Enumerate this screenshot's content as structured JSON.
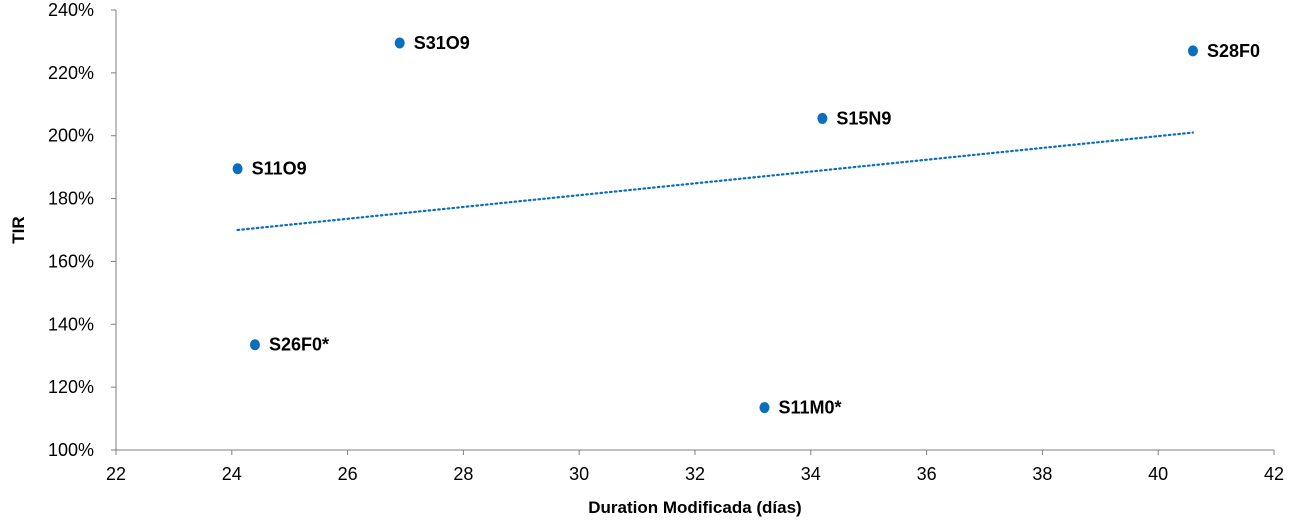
{
  "chart_data": {
    "type": "scatter",
    "title": "",
    "xlabel": "Duration Modificada (días)",
    "ylabel": "TIR",
    "xlim": [
      22,
      42
    ],
    "ylim": [
      100,
      240
    ],
    "x_ticks": [
      22,
      24,
      26,
      28,
      30,
      32,
      34,
      36,
      38,
      40,
      42
    ],
    "y_ticks": [
      100,
      120,
      140,
      160,
      180,
      200,
      220,
      240
    ],
    "y_tick_labels": [
      "100%",
      "120%",
      "140%",
      "160%",
      "180%",
      "200%",
      "220%",
      "240%"
    ],
    "grid": false,
    "legend": "none",
    "point_color": "#0b6fbd",
    "trendline": {
      "style": "dotted",
      "color": "#0b6fbd",
      "points": [
        [
          24.1,
          170
        ],
        [
          40.6,
          201
        ]
      ]
    },
    "points": [
      {
        "label": "S31O9",
        "x": 26.9,
        "y": 229.5
      },
      {
        "label": "S28F0",
        "x": 40.6,
        "y": 227
      },
      {
        "label": "S15N9",
        "x": 34.2,
        "y": 205.5
      },
      {
        "label": "S11O9",
        "x": 24.1,
        "y": 189.5
      },
      {
        "label": "S26F0*",
        "x": 24.4,
        "y": 133.5
      },
      {
        "label": "S11M0*",
        "x": 33.2,
        "y": 113.5
      }
    ]
  }
}
